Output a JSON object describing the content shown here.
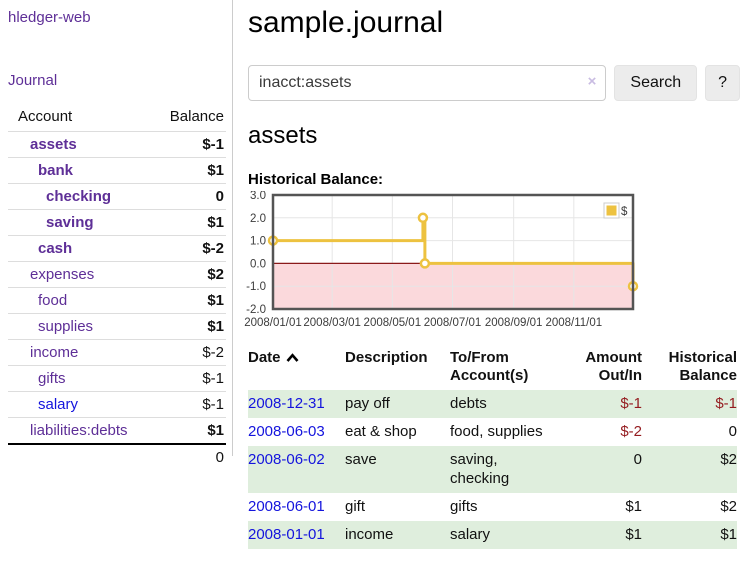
{
  "app": {
    "brand": "hledger-web"
  },
  "nav": {
    "journal": "Journal"
  },
  "sidebar": {
    "table_headers": {
      "account": "Account",
      "balance": "Balance"
    },
    "accounts": [
      {
        "name": "assets",
        "level": 1,
        "bold": true,
        "balance": "$-1",
        "neg": "strong",
        "link": "purple"
      },
      {
        "name": "bank",
        "level": 2,
        "bold": true,
        "balance": "$1",
        "neg": "none",
        "link": "purple"
      },
      {
        "name": "checking",
        "level": 3,
        "bold": true,
        "balance": "0",
        "neg": "none",
        "link": "purple"
      },
      {
        "name": "saving",
        "level": 3,
        "bold": true,
        "balance": "$1",
        "neg": "none",
        "link": "purple"
      },
      {
        "name": "cash",
        "level": 2,
        "bold": true,
        "balance": "$-2",
        "neg": "strong",
        "link": "purple"
      },
      {
        "name": "expenses",
        "level": 1,
        "bold": false,
        "balance": "$2",
        "neg": "none",
        "link": "purple"
      },
      {
        "name": "food",
        "level": 2,
        "bold": false,
        "balance": "$1",
        "neg": "none",
        "link": "purple"
      },
      {
        "name": "supplies",
        "level": 2,
        "bold": false,
        "balance": "$1",
        "neg": "none",
        "link": "purple"
      },
      {
        "name": "income",
        "level": 1,
        "bold": false,
        "balance": "$-2",
        "neg": "soft",
        "link": "purple"
      },
      {
        "name": "gifts",
        "level": 2,
        "bold": false,
        "balance": "$-1",
        "neg": "soft",
        "link": "purple"
      },
      {
        "name": "salary",
        "level": 2,
        "bold": false,
        "balance": "$-1",
        "neg": "soft",
        "link": "blue"
      },
      {
        "name": "liabilities:debts",
        "level": 1,
        "bold": false,
        "balance": "$1",
        "neg": "none",
        "link": "purple"
      }
    ],
    "total": "0"
  },
  "header": {
    "title": "sample.journal"
  },
  "search": {
    "value": "inacct:assets",
    "clear": "×",
    "button": "Search",
    "help": "?"
  },
  "account_page": {
    "title": "assets",
    "section_label": "Historical Balance:"
  },
  "chart_data": {
    "type": "line",
    "title": "Historical Balance",
    "step": true,
    "series": [
      {
        "name": "$",
        "color": "#edc240",
        "points": [
          {
            "x": "2008-01-01",
            "y": 1.0
          },
          {
            "x": "2008-06-01",
            "y": 2.0
          },
          {
            "x": "2008-06-03",
            "y": 0.0
          },
          {
            "x": "2008-12-31",
            "y": -1.0
          }
        ]
      }
    ],
    "x_range": [
      "2008-01-01",
      "2008-12-31"
    ],
    "ylim": [
      -2.0,
      3.0
    ],
    "yticks": [
      3.0,
      2.0,
      1.0,
      0.0,
      -1.0,
      -2.0
    ],
    "xticks": [
      {
        "date": "2008-01-01",
        "label": "2008/01/01"
      },
      {
        "date": "2008-03-01",
        "label": "2008/03/01"
      },
      {
        "date": "2008-05-01",
        "label": "2008/05/01"
      },
      {
        "date": "2008-07-01",
        "label": "2008/07/01"
      },
      {
        "date": "2008-09-01",
        "label": "2008/09/01"
      },
      {
        "date": "2008-11-01",
        "label": "2008/11/01"
      }
    ],
    "legend": {
      "label": "$",
      "position": "top-right"
    },
    "grid": true,
    "negative_region_fill": "#fbd9dc",
    "zero_line_color": "#8b1a1a",
    "border_color": "#545454",
    "gridline_color": "#e6e6e6"
  },
  "register": {
    "columns": [
      {
        "label": "Date",
        "sort": "asc"
      },
      {
        "label": "Description"
      },
      {
        "label": "To/From Account(s)"
      },
      {
        "label": "Amount Out/In"
      },
      {
        "label": "Historical Balance"
      }
    ],
    "rows": [
      {
        "date": "2008-12-31",
        "description": "pay off",
        "accounts": "debts",
        "amount": "$-1",
        "balance": "$-1"
      },
      {
        "date": "2008-06-03",
        "description": "eat & shop",
        "accounts": "food, supplies",
        "amount": "$-2",
        "balance": "0"
      },
      {
        "date": "2008-06-02",
        "description": "save",
        "accounts": "saving, checking",
        "amount": "0",
        "balance": "$2"
      },
      {
        "date": "2008-06-01",
        "description": "gift",
        "accounts": "gifts",
        "amount": "$1",
        "balance": "$2"
      },
      {
        "date": "2008-01-01",
        "description": "income",
        "accounts": "salary",
        "amount": "$1",
        "balance": "$1"
      }
    ]
  },
  "colors": {
    "link_purple": "#5e2f97",
    "link_blue": "#1414dd",
    "neg_strong": "#941b1f",
    "neg_soft": "#c4666b",
    "row_green": "#dfeedd",
    "button_bg": "#ececec",
    "border_gray": "#cccccc"
  }
}
